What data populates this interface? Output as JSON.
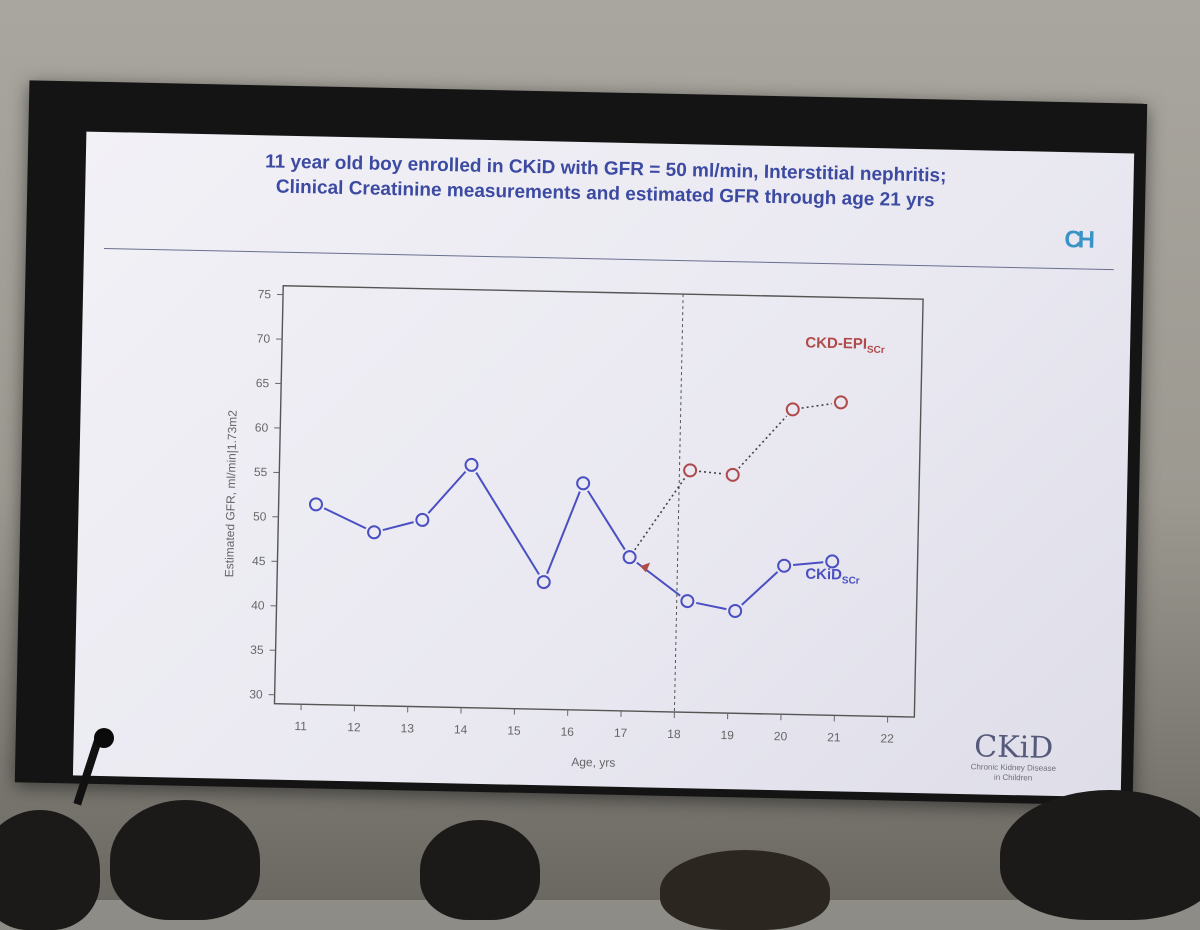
{
  "slide": {
    "title_line1": "11 year old boy enrolled in CKiD with GFR = 50 ml/min, Interstitial nephritis;",
    "title_line2": "Clinical Creatinine measurements and estimated GFR through age 21 yrs",
    "corner_logo": "CH",
    "footer_logo_mark": "CKiD",
    "footer_logo_line1": "Chronic Kidney Disease",
    "footer_logo_line2": "in Children"
  },
  "chart_data": {
    "type": "line",
    "xlabel": "Age, yrs",
    "ylabel": "Estimated GFR, ml/min|1.73m2",
    "xlim": [
      10.5,
      22.5
    ],
    "ylim": [
      29,
      76
    ],
    "xticks": [
      11,
      12,
      13,
      14,
      15,
      16,
      17,
      18,
      19,
      20,
      21,
      22
    ],
    "yticks": [
      30,
      35,
      40,
      45,
      50,
      55,
      60,
      65,
      70,
      75
    ],
    "vline_x": 18.0,
    "series": [
      {
        "name": "CKiD",
        "name_sub": "SCr",
        "color": "#4a4fc2",
        "style": "solid",
        "points": [
          [
            11.2,
            51.5
          ],
          [
            12.3,
            48.5
          ],
          [
            13.2,
            50.0
          ],
          [
            14.1,
            56.3
          ],
          [
            15.5,
            43.3
          ],
          [
            16.2,
            54.5
          ],
          [
            17.1,
            46.3
          ],
          [
            18.2,
            41.5
          ],
          [
            19.1,
            40.5
          ],
          [
            20.0,
            45.7
          ],
          [
            20.9,
            46.3
          ]
        ]
      },
      {
        "name": "CKD-EPI",
        "name_sub": "SCr",
        "color": "#b04a4a",
        "style": "dotted",
        "points": [
          [
            17.1,
            46.3
          ],
          [
            18.2,
            56.2
          ],
          [
            19.0,
            55.8
          ],
          [
            20.1,
            63.3
          ],
          [
            21.0,
            64.2
          ]
        ]
      }
    ],
    "legend_placement": "inline-labels",
    "marker_color": "#b04a4a"
  }
}
